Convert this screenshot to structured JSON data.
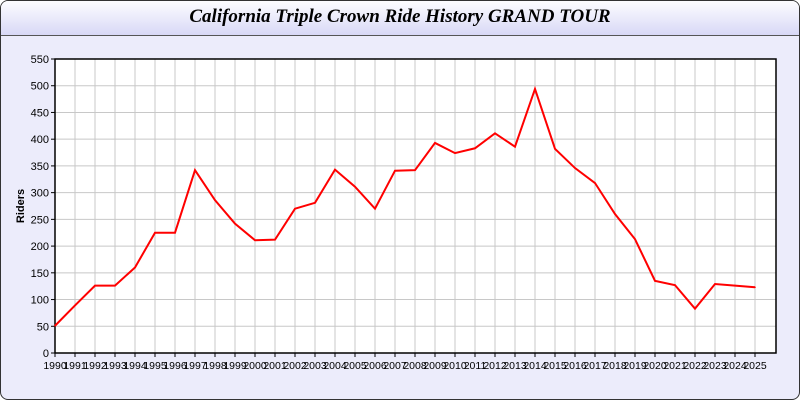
{
  "chart_data": {
    "type": "line",
    "title": "California Triple Crown Ride History GRAND TOUR",
    "xlabel": "",
    "ylabel": "Riders",
    "ylim": [
      0,
      550
    ],
    "yticks": [
      0,
      50,
      100,
      150,
      200,
      250,
      300,
      350,
      400,
      450,
      500,
      550
    ],
    "grid": true,
    "x": [
      "1990",
      "1991",
      "1992",
      "1993",
      "1994",
      "1995",
      "1996",
      "1997",
      "1998",
      "1999",
      "2000",
      "2001",
      "2002",
      "2003",
      "2004",
      "2005",
      "2006",
      "2007",
      "2008",
      "2009",
      "2010",
      "2011",
      "2012",
      "2013",
      "2014",
      "2015",
      "2016",
      "2017",
      "2018",
      "2019",
      "2020",
      "2021",
      "2022",
      "2023",
      "2024",
      "2025"
    ],
    "series": [
      {
        "color": "#ff0000",
        "values": [
          51,
          89,
          126,
          126,
          160,
          225,
          225,
          342,
          286,
          242,
          211,
          212,
          270,
          281,
          343,
          311,
          270,
          341,
          342,
          393,
          374,
          383,
          411,
          386,
          494,
          382,
          346,
          318,
          260,
          213,
          135,
          127,
          83,
          129,
          126,
          123
        ]
      }
    ]
  }
}
